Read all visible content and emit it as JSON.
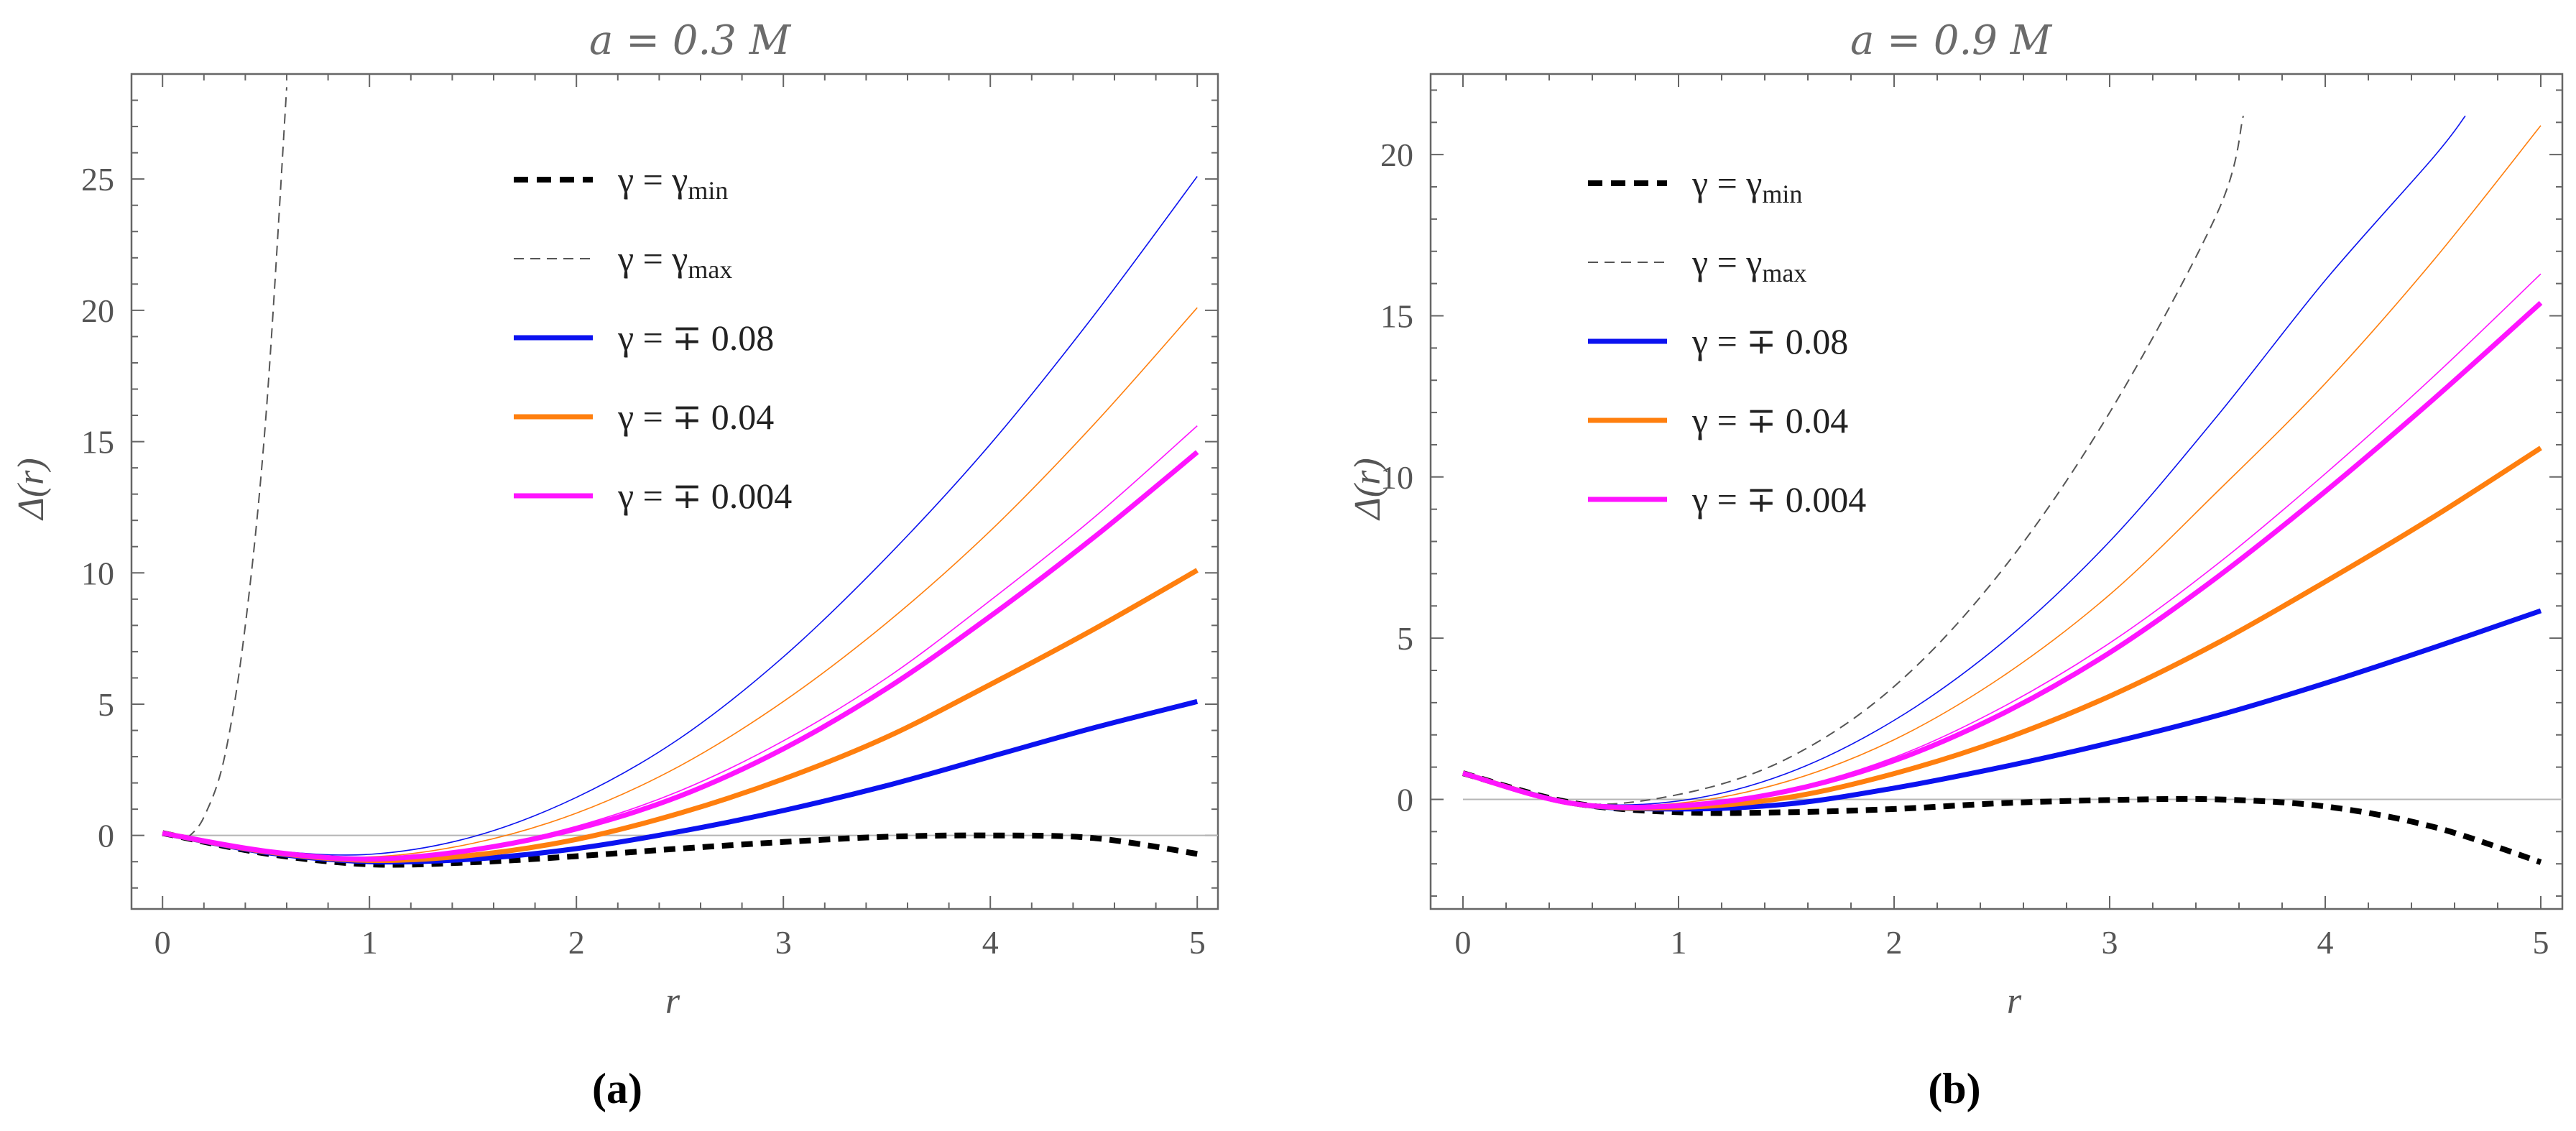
{
  "chart_data": [
    {
      "type": "line",
      "title": "a = 0.3 M",
      "caption": "(a)",
      "xlabel": "r",
      "ylabel": "Δ(r)",
      "xlim": [
        -0.15,
        5.1
      ],
      "ylim": [
        -2.8,
        29.0
      ],
      "xticks": [
        "0",
        "1",
        "2",
        "3",
        "4",
        "5"
      ],
      "yticks": [
        "0",
        "5",
        "10",
        "15",
        "20",
        "25"
      ],
      "grid": false,
      "legend_position": "top-center",
      "legend": [
        {
          "label": "γ = γ_min",
          "color": "#000000",
          "style": "thick-dashed"
        },
        {
          "label": "γ = γ_max",
          "color": "#555555",
          "style": "thin-dashed"
        },
        {
          "label": "γ = ∓ 0.08",
          "color": "#0b12f0",
          "style": "solid"
        },
        {
          "label": "γ = ∓ 0.04",
          "color": "#ff7f0e",
          "style": "solid"
        },
        {
          "label": "γ = ∓ 0.004",
          "color": "#ff14ff",
          "style": "solid"
        }
      ],
      "series": [
        {
          "name": "γ = γ_min",
          "color": "#000000",
          "style": "thick-dashed",
          "x": [
            0,
            0.5,
            1,
            1.5,
            2,
            2.5,
            3,
            3.5,
            4,
            4.5,
            5
          ],
          "values": [
            0.09,
            -0.69,
            -1.1,
            -1.02,
            -0.79,
            -0.5,
            -0.25,
            -0.05,
            0.0,
            -0.1,
            -0.7
          ]
        },
        {
          "name": "γ = γ_max",
          "color": "#555555",
          "style": "thin-dashed",
          "x": [
            0.12,
            0.2,
            0.3,
            0.4,
            0.5,
            0.6
          ],
          "values": [
            -0.1,
            0.7,
            3.0,
            8.0,
            16.0,
            28.5
          ]
        },
        {
          "name": "γ = - 0.08",
          "color": "#0b12f0",
          "style": "solid-thick",
          "x": [
            0,
            0.5,
            1,
            1.5,
            2,
            2.5,
            3,
            3.5,
            4,
            4.5,
            5
          ],
          "values": [
            0.09,
            -0.65,
            -1.0,
            -0.9,
            -0.5,
            0.15,
            0.95,
            1.9,
            3.0,
            4.1,
            5.1
          ]
        },
        {
          "name": "γ = - 0.04",
          "color": "#ff7f0e",
          "style": "solid-thick",
          "x": [
            0,
            0.5,
            1,
            1.5,
            2,
            2.5,
            3,
            3.5,
            4,
            4.5,
            5
          ],
          "values": [
            0.09,
            -0.62,
            -0.95,
            -0.75,
            -0.15,
            0.85,
            2.15,
            3.75,
            5.75,
            7.85,
            10.1
          ]
        },
        {
          "name": "γ = - 0.004",
          "color": "#ff14ff",
          "style": "solid-thick",
          "x": [
            0,
            0.5,
            1,
            1.5,
            2,
            2.5,
            3,
            3.5,
            4,
            4.5,
            5
          ],
          "values": [
            0.09,
            -0.6,
            -0.9,
            -0.55,
            0.25,
            1.5,
            3.3,
            5.6,
            8.35,
            11.35,
            14.6
          ]
        },
        {
          "name": "γ = + 0.004",
          "color": "#ff14ff",
          "style": "solid-thin",
          "x": [
            0,
            0.5,
            1,
            1.5,
            2,
            2.5,
            3,
            3.5,
            4,
            4.5,
            5
          ],
          "values": [
            0.09,
            -0.6,
            -0.88,
            -0.5,
            0.35,
            1.7,
            3.6,
            6.0,
            8.95,
            12.1,
            15.6
          ]
        },
        {
          "name": "γ = + 0.04",
          "color": "#ff7f0e",
          "style": "solid-thin",
          "x": [
            0,
            0.5,
            1,
            1.5,
            2,
            2.5,
            3,
            3.5,
            4,
            4.5,
            5
          ],
          "values": [
            0.09,
            -0.58,
            -0.82,
            -0.3,
            0.85,
            2.65,
            5.1,
            8.1,
            11.6,
            15.65,
            20.1
          ]
        },
        {
          "name": "γ = + 0.08",
          "color": "#0b12f0",
          "style": "solid-thin",
          "x": [
            0,
            0.5,
            1,
            1.5,
            2,
            2.5,
            3,
            3.5,
            4,
            4.5,
            5
          ],
          "values": [
            0.09,
            -0.55,
            -0.72,
            -0.05,
            1.45,
            3.7,
            6.8,
            10.6,
            14.9,
            19.8,
            25.1
          ]
        }
      ]
    },
    {
      "type": "line",
      "title": "a = 0.9 M",
      "caption": "(b)",
      "xlabel": "r",
      "ylabel": "Δ(r)",
      "xlim": [
        -0.15,
        5.1
      ],
      "ylim": [
        -3.4,
        22.5
      ],
      "xticks": [
        "0",
        "1",
        "2",
        "3",
        "4",
        "5"
      ],
      "yticks": [
        "0",
        "5",
        "10",
        "15",
        "20"
      ],
      "grid": false,
      "legend_position": "top-center",
      "legend": [
        {
          "label": "γ = γ_min",
          "color": "#000000",
          "style": "thick-dashed"
        },
        {
          "label": "γ = γ_max",
          "color": "#555555",
          "style": "thin-dashed"
        },
        {
          "label": "γ = ∓ 0.08",
          "color": "#0b12f0",
          "style": "solid"
        },
        {
          "label": "γ = ∓ 0.04",
          "color": "#ff7f0e",
          "style": "solid"
        },
        {
          "label": "γ = ∓ 0.004",
          "color": "#ff14ff",
          "style": "solid"
        }
      ],
      "series": [
        {
          "name": "γ = γ_min",
          "color": "#000000",
          "style": "thick-dashed",
          "x": [
            0,
            0.5,
            1,
            1.5,
            2,
            2.5,
            3,
            3.5,
            4,
            4.5,
            5
          ],
          "values": [
            0.81,
            -0.1,
            -0.4,
            -0.4,
            -0.3,
            -0.12,
            -0.02,
            0.0,
            -0.22,
            -0.85,
            -1.95
          ]
        },
        {
          "name": "γ = γ_max",
          "color": "#555555",
          "style": "thin-dashed",
          "x": [
            0,
            0.5,
            1,
            1.5,
            2,
            2.5,
            3,
            3.5,
            3.62
          ],
          "values": [
            0.81,
            -0.12,
            0.15,
            1.25,
            3.5,
            7.1,
            12.0,
            18.2,
            21.2
          ]
        },
        {
          "name": "γ = - 0.08",
          "color": "#0b12f0",
          "style": "solid-thick",
          "x": [
            0,
            0.5,
            1,
            1.5,
            2,
            2.5,
            3,
            3.5,
            4,
            4.5,
            5
          ],
          "values": [
            0.81,
            -0.12,
            -0.3,
            -0.15,
            0.35,
            1.0,
            1.75,
            2.6,
            3.6,
            4.7,
            5.85
          ]
        },
        {
          "name": "γ = - 0.04",
          "color": "#ff7f0e",
          "style": "solid-thick",
          "x": [
            0,
            0.5,
            1,
            1.5,
            2,
            2.5,
            3,
            3.5,
            4,
            4.5,
            5
          ],
          "values": [
            0.81,
            -0.12,
            -0.25,
            0.05,
            0.8,
            1.85,
            3.2,
            4.85,
            6.75,
            8.75,
            10.9
          ]
        },
        {
          "name": "γ = - 0.004",
          "color": "#ff14ff",
          "style": "solid-thick",
          "x": [
            0,
            0.5,
            1,
            1.5,
            2,
            2.5,
            3,
            3.5,
            4,
            4.5,
            5
          ],
          "values": [
            0.81,
            -0.12,
            -0.2,
            0.25,
            1.2,
            2.65,
            4.55,
            6.9,
            9.55,
            12.4,
            15.4
          ]
        },
        {
          "name": "γ = + 0.004",
          "color": "#ff14ff",
          "style": "solid-thin",
          "x": [
            0,
            0.5,
            1,
            1.5,
            2,
            2.5,
            3,
            3.5,
            4,
            4.5,
            5
          ],
          "values": [
            0.81,
            -0.12,
            -0.18,
            0.3,
            1.3,
            2.85,
            4.85,
            7.3,
            10.1,
            13.1,
            16.3
          ]
        },
        {
          "name": "γ = + 0.04",
          "color": "#ff7f0e",
          "style": "solid-thin",
          "x": [
            0,
            0.5,
            1,
            1.5,
            2,
            2.5,
            3,
            3.5,
            4,
            4.5,
            5
          ],
          "values": [
            0.81,
            -0.1,
            -0.12,
            0.55,
            1.85,
            3.8,
            6.35,
            9.55,
            12.9,
            16.7,
            20.9
          ]
        },
        {
          "name": "γ = + 0.08",
          "color": "#0b12f0",
          "style": "solid-thin",
          "x": [
            0,
            0.5,
            1,
            1.5,
            2,
            2.5,
            3,
            3.5,
            4,
            4.5,
            4.65
          ],
          "values": [
            0.81,
            -0.08,
            -0.05,
            0.8,
            2.45,
            4.85,
            8.0,
            11.9,
            16.1,
            19.9,
            21.2
          ]
        }
      ]
    }
  ]
}
